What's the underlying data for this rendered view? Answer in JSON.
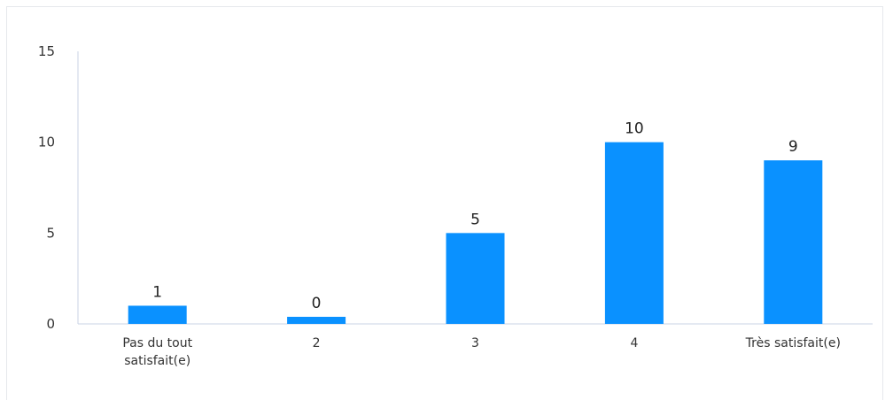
{
  "chart_data": {
    "type": "bar",
    "categories": [
      [
        "Pas du tout",
        "satisfait(e)"
      ],
      [
        "2"
      ],
      [
        "3"
      ],
      [
        "4"
      ],
      [
        "Très satisfait(e)"
      ]
    ],
    "values": [
      1,
      0,
      5,
      10,
      9
    ],
    "data_labels": [
      "1",
      "0",
      "5",
      "10",
      "9"
    ],
    "y_ticks": [
      "0",
      "5",
      "10",
      "15"
    ],
    "ylim": [
      0,
      15
    ],
    "bar_color": "#0a91ff",
    "axis_color": "#c8d3e6",
    "grid": false,
    "legend": "none"
  }
}
